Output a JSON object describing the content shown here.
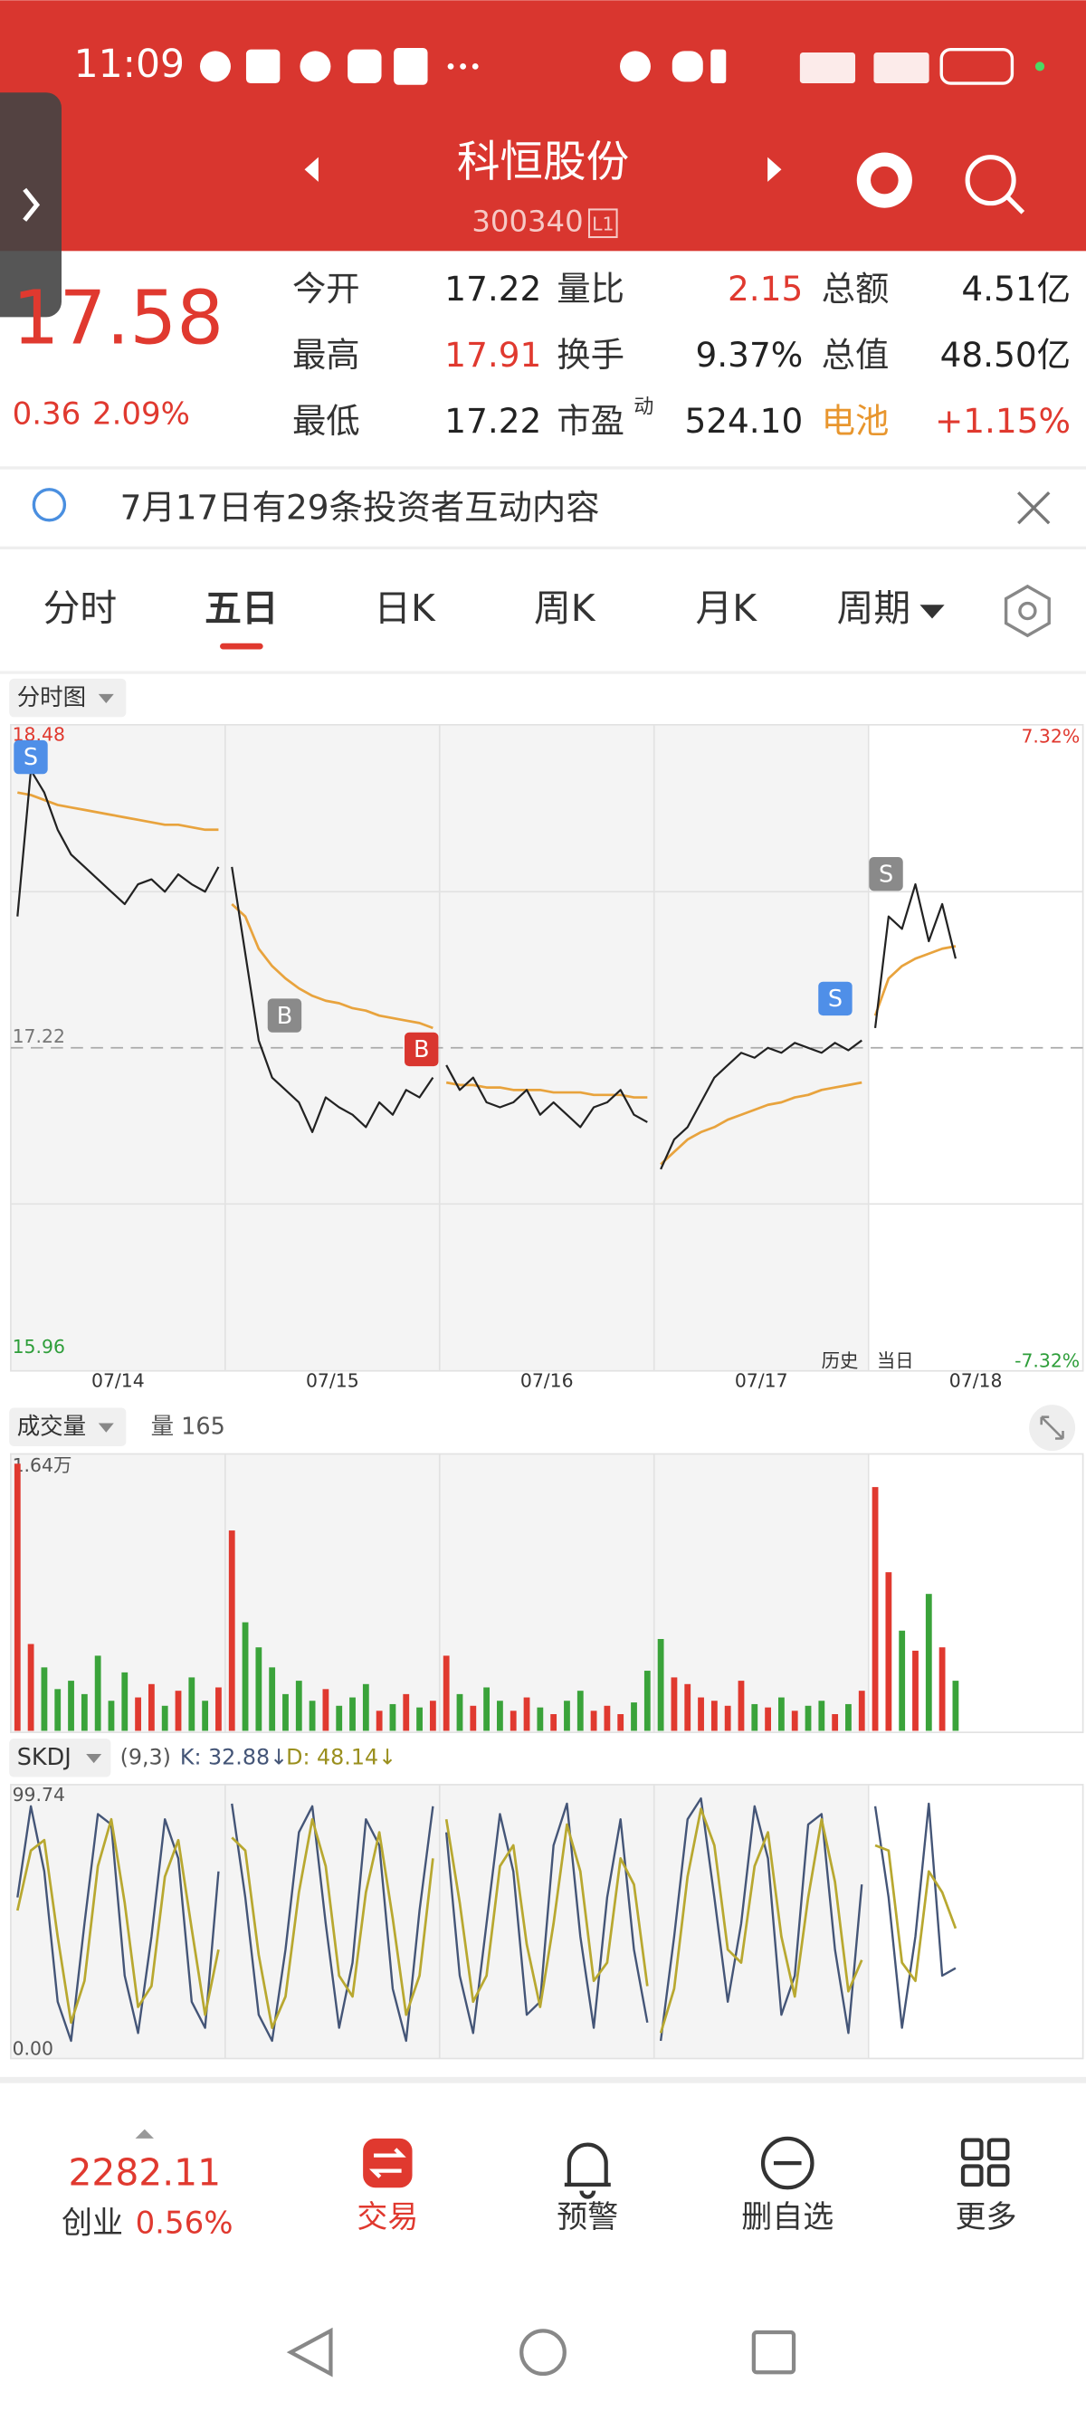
{
  "status_bar": {
    "time": "11:09"
  },
  "header": {
    "title": "科恒股份",
    "code": "300340",
    "badge": "L1"
  },
  "quote": {
    "price": "17.58",
    "change": "0.36",
    "change_pct": "2.09%",
    "fields": [
      {
        "label": "今开",
        "value": "17.22",
        "color": "#222222"
      },
      {
        "label": "量比",
        "value": "2.15",
        "color": "#e0392f"
      },
      {
        "label": "总额",
        "value": "4.51亿",
        "color": "#222222"
      },
      {
        "label": "最高",
        "value": "17.91",
        "color": "#e0392f"
      },
      {
        "label": "换手",
        "value": "9.37%",
        "color": "#222222"
      },
      {
        "label": "总值",
        "value": "48.50亿",
        "color": "#222222"
      },
      {
        "label": "最低",
        "value": "17.22",
        "color": "#222222"
      },
      {
        "label": "市盈",
        "sup": "动",
        "value": "524.10",
        "color": "#222222"
      },
      {
        "label": "电池",
        "value": "+1.15%",
        "color": "#e0392f",
        "label_color": "#e8962e"
      }
    ]
  },
  "notice": "7月17日有29条投资者互动内容",
  "tabs": [
    "分时",
    "五日",
    "日K",
    "周K",
    "月K",
    "周期"
  ],
  "chart": {
    "panel_label": "分时图",
    "ylim": [
      15.96,
      18.48
    ],
    "yticks": [
      18.48,
      17.22,
      15.96
    ],
    "pct_top": "7.32%",
    "pct_bottom": "-7.32%",
    "dates": [
      "07/14",
      "07/15",
      "07/16",
      "07/17",
      "07/18"
    ],
    "history_label": "历史",
    "today_label": "当日",
    "markers": [
      "S",
      "B",
      "B",
      "S",
      "S"
    ],
    "days": [
      {
        "price": [
          17.75,
          18.34,
          18.25,
          18.1,
          18.0,
          17.95,
          17.9,
          17.85,
          17.8,
          17.88,
          17.9,
          17.85,
          17.92,
          17.88,
          17.85,
          17.95
        ],
        "avg": [
          18.25,
          18.24,
          18.22,
          18.2,
          18.19,
          18.18,
          18.17,
          18.16,
          18.15,
          18.14,
          18.13,
          18.12,
          18.12,
          18.11,
          18.1,
          18.1
        ]
      },
      {
        "price": [
          17.95,
          17.6,
          17.25,
          17.1,
          17.05,
          17.0,
          16.88,
          17.02,
          16.98,
          16.95,
          16.9,
          17.0,
          16.95,
          17.05,
          17.02,
          17.1
        ],
        "avg": [
          17.8,
          17.75,
          17.62,
          17.55,
          17.5,
          17.46,
          17.43,
          17.41,
          17.4,
          17.38,
          17.37,
          17.35,
          17.34,
          17.33,
          17.32,
          17.3
        ]
      },
      {
        "price": [
          17.15,
          17.05,
          17.1,
          17.0,
          16.98,
          17.0,
          17.05,
          16.95,
          17.0,
          16.95,
          16.9,
          16.98,
          17.0,
          17.05,
          16.95,
          16.92
        ],
        "avg": [
          17.08,
          17.07,
          17.07,
          17.06,
          17.06,
          17.05,
          17.05,
          17.05,
          17.04,
          17.04,
          17.04,
          17.03,
          17.03,
          17.03,
          17.02,
          17.02
        ]
      },
      {
        "price": [
          16.73,
          16.85,
          16.9,
          17.0,
          17.1,
          17.15,
          17.2,
          17.18,
          17.22,
          17.2,
          17.24,
          17.22,
          17.2,
          17.24,
          17.21,
          17.25
        ],
        "avg": [
          16.75,
          16.8,
          16.85,
          16.88,
          16.9,
          16.93,
          16.95,
          16.97,
          16.99,
          17.0,
          17.02,
          17.03,
          17.05,
          17.06,
          17.07,
          17.08
        ]
      },
      {
        "price": [
          17.3,
          17.75,
          17.7,
          17.88,
          17.65,
          17.8,
          17.58
        ],
        "avg": [
          17.35,
          17.5,
          17.55,
          17.58,
          17.6,
          17.62,
          17.63
        ]
      }
    ]
  },
  "volume": {
    "label": "成交量",
    "current_label": "量 165",
    "ylim": [
      0,
      16400
    ],
    "yticks": [
      {
        "value": 16400,
        "label": "1.64万"
      }
    ],
    "days": [
      [
        16000,
        5200,
        3800,
        2500,
        3000,
        2200,
        4500,
        1800,
        3500,
        2000,
        2800,
        1500,
        2400,
        3200,
        1800,
        2600
      ],
      [
        12000,
        6500,
        5000,
        3800,
        2200,
        3000,
        1800,
        2500,
        1500,
        2000,
        2800,
        1200,
        1600,
        2200,
        1400,
        1800
      ],
      [
        4500,
        2200,
        1500,
        2600,
        1800,
        1200,
        2000,
        1400,
        1000,
        1800,
        2400,
        1200,
        1500,
        1000,
        1700,
        3600
      ],
      [
        5500,
        3200,
        2800,
        2000,
        1800,
        1500,
        3000,
        1600,
        1400,
        2000,
        1200,
        1500,
        1800,
        1000,
        1600,
        2400
      ],
      [
        14600,
        9500,
        6000,
        4800,
        8200,
        5000,
        3000
      ]
    ]
  },
  "kdj": {
    "label": "SKDJ",
    "params": "(9,3)",
    "k_label": "K: 32.88↓",
    "d_label": "D: 48.14↓",
    "ylim": [
      0,
      99.74
    ],
    "yticks": [
      99.74,
      {
        "value": 0,
        "label": "0.00"
      }
    ],
    "days": [
      {
        "k": [
          60,
          95,
          70,
          20,
          5,
          50,
          92,
          88,
          30,
          8,
          45,
          90,
          75,
          20,
          10,
          70
        ],
        "d": [
          55,
          78,
          82,
          45,
          12,
          28,
          72,
          90,
          58,
          18,
          26,
          68,
          82,
          48,
          15,
          40
        ]
      },
      {
        "k": [
          96,
          60,
          15,
          5,
          40,
          85,
          95,
          50,
          10,
          35,
          90,
          80,
          25,
          5,
          55,
          95
        ],
        "d": [
          83,
          78,
          38,
          10,
          22,
          62,
          90,
          72,
          30,
          22,
          62,
          85,
          52,
          15,
          30,
          75
        ]
      },
      {
        "k": [
          85,
          30,
          8,
          50,
          92,
          70,
          15,
          20,
          80,
          96,
          45,
          10,
          60,
          90,
          40,
          12
        ],
        "d": [
          90,
          58,
          20,
          30,
          72,
          80,
          42,
          18,
          50,
          88,
          70,
          28,
          35,
          75,
          65,
          26
        ]
      },
      {
        "k": [
          5,
          45,
          90,
          98,
          60,
          20,
          50,
          95,
          75,
          15,
          30,
          88,
          92,
          40,
          8,
          65
        ],
        "d": [
          8,
          25,
          68,
          94,
          80,
          40,
          35,
          72,
          85,
          45,
          22,
          60,
          90,
          66,
          24,
          36
        ]
      },
      {
        "k": [
          95,
          60,
          10,
          45,
          96,
          30,
          32.88
        ],
        "d": [
          80,
          78,
          35,
          28,
          70,
          62,
          48.14
        ]
      }
    ]
  },
  "bottom_bar": {
    "index_value": "2282.11",
    "index_name": "创业",
    "index_change": "0.56%",
    "items": [
      "交易",
      "预警",
      "删自选",
      "更多"
    ]
  }
}
